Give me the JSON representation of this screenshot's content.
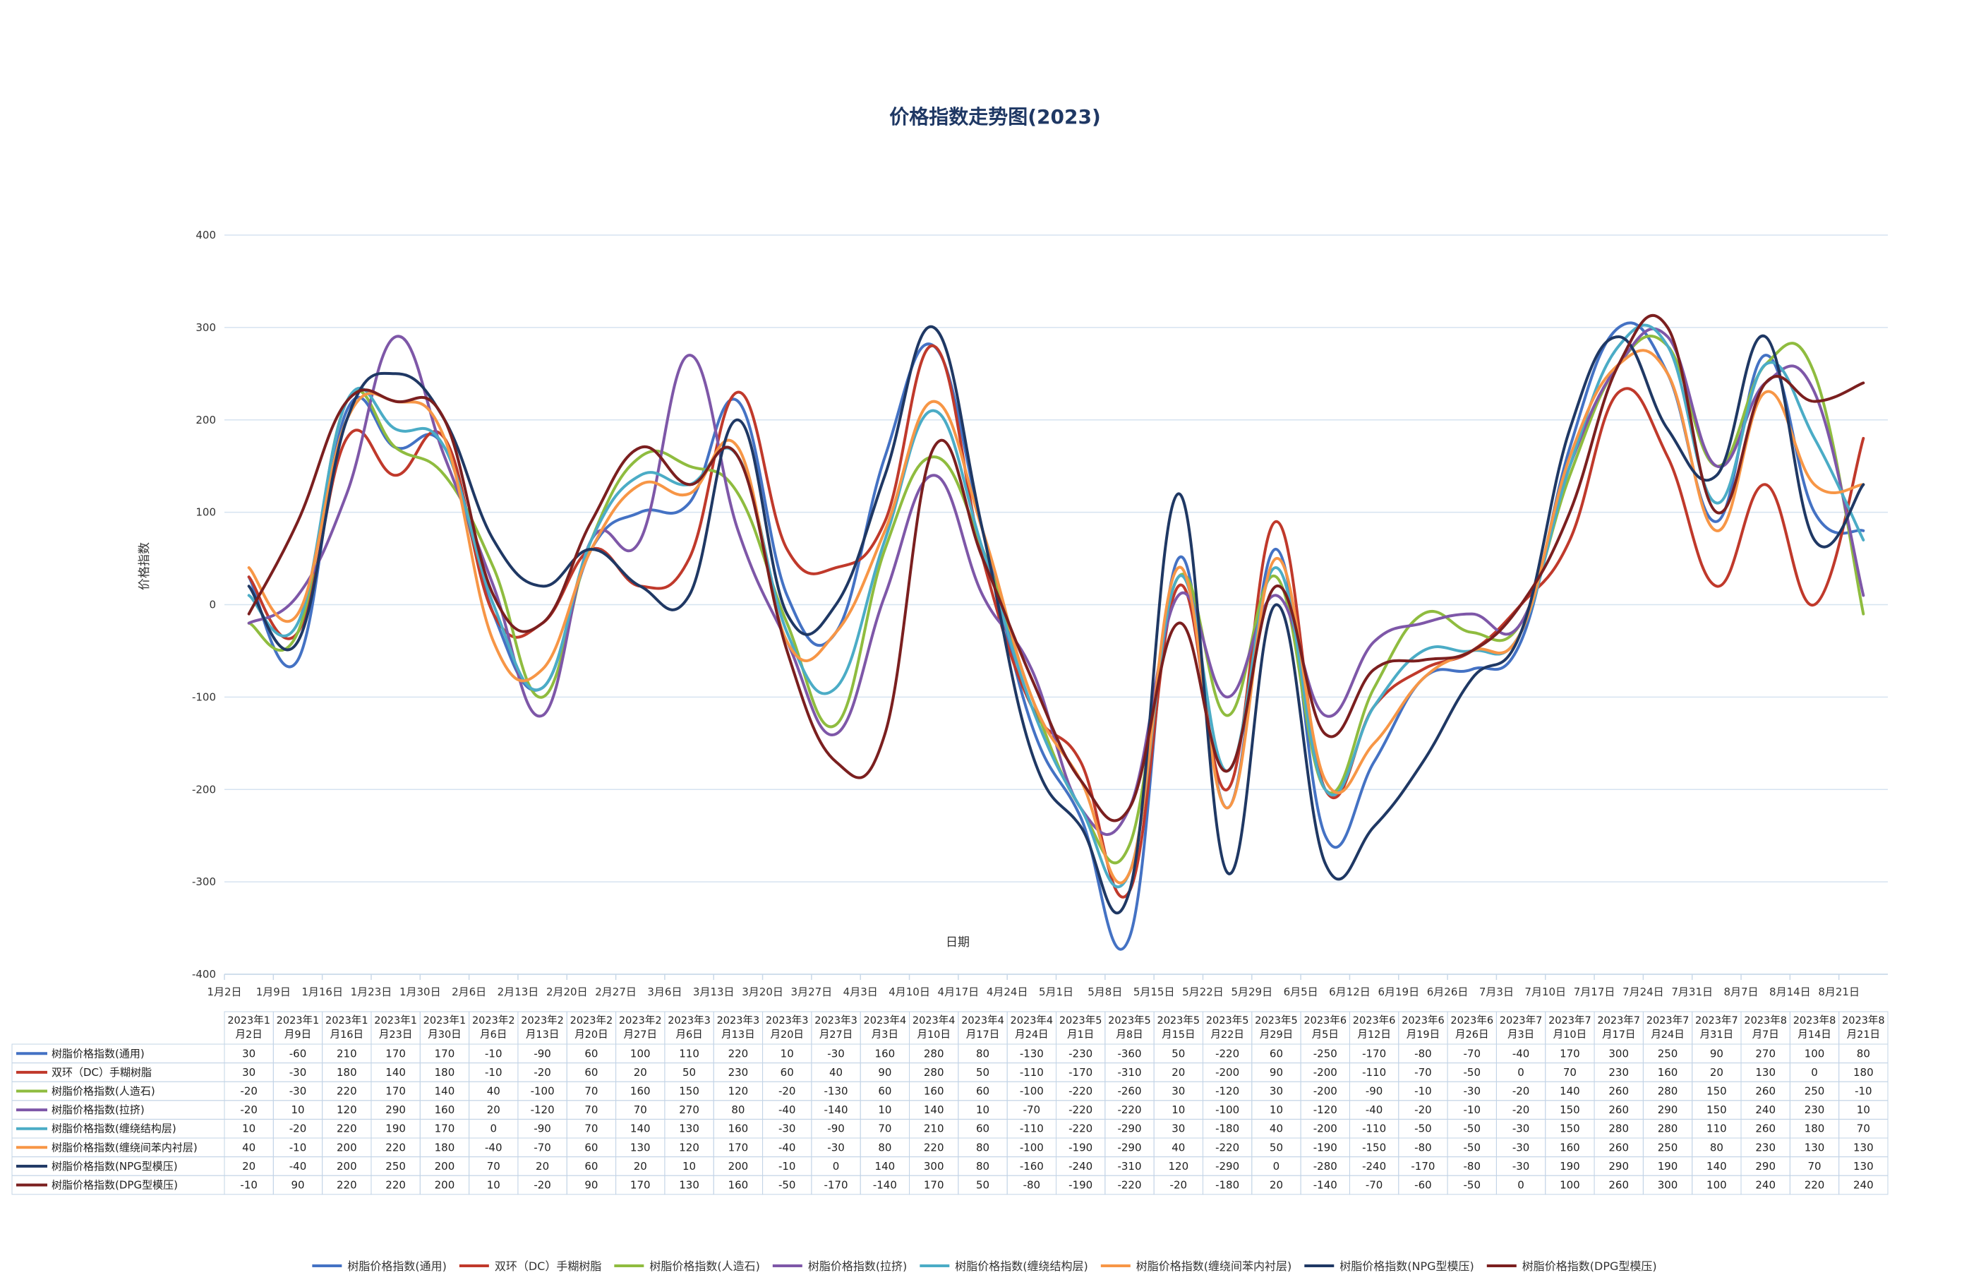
{
  "chart_data": {
    "type": "line",
    "title": "价格指数走势图(2023)",
    "xlabel": "日期",
    "ylabel": "价格指数",
    "ylim": [
      -400,
      400
    ],
    "yticks": [
      -400,
      -300,
      -200,
      -100,
      0,
      100,
      200,
      300,
      400
    ],
    "grid": true,
    "legend_position": "bottom",
    "categories": [
      "1月2日",
      "1月9日",
      "1月16日",
      "1月23日",
      "1月30日",
      "2月6日",
      "2月13日",
      "2月20日",
      "2月27日",
      "3月6日",
      "3月13日",
      "3月20日",
      "3月27日",
      "4月3日",
      "4月10日",
      "4月17日",
      "4月24日",
      "5月1日",
      "5月8日",
      "5月15日",
      "5月22日",
      "5月29日",
      "6月5日",
      "6月12日",
      "6月19日",
      "6月26日",
      "7月3日",
      "7月10日",
      "7月17日",
      "7月24日",
      "7月31日",
      "8月7日",
      "8月14日",
      "8月21日"
    ],
    "table_headers": [
      [
        "2023年1",
        "月2日"
      ],
      [
        "2023年1",
        "月9日"
      ],
      [
        "2023年1",
        "月16日"
      ],
      [
        "2023年1",
        "月23日"
      ],
      [
        "2023年1",
        "月30日"
      ],
      [
        "2023年2",
        "月6日"
      ],
      [
        "2023年2",
        "月13日"
      ],
      [
        "2023年2",
        "月20日"
      ],
      [
        "2023年2",
        "月27日"
      ],
      [
        "2023年3",
        "月6日"
      ],
      [
        "2023年3",
        "月13日"
      ],
      [
        "2023年3",
        "月20日"
      ],
      [
        "2023年3",
        "月27日"
      ],
      [
        "2023年4",
        "月3日"
      ],
      [
        "2023年4",
        "月10日"
      ],
      [
        "2023年4",
        "月17日"
      ],
      [
        "2023年4",
        "月24日"
      ],
      [
        "2023年5",
        "月1日"
      ],
      [
        "2023年5",
        "月8日"
      ],
      [
        "2023年5",
        "月15日"
      ],
      [
        "2023年5",
        "月22日"
      ],
      [
        "2023年5",
        "月29日"
      ],
      [
        "2023年6",
        "月5日"
      ],
      [
        "2023年6",
        "月12日"
      ],
      [
        "2023年6",
        "月19日"
      ],
      [
        "2023年6",
        "月26日"
      ],
      [
        "2023年7",
        "月3日"
      ],
      [
        "2023年7",
        "月10日"
      ],
      [
        "2023年7",
        "月17日"
      ],
      [
        "2023年7",
        "月24日"
      ],
      [
        "2023年7",
        "月31日"
      ],
      [
        "2023年8",
        "月7日"
      ],
      [
        "2023年8",
        "月14日"
      ],
      [
        "2023年8",
        "月21日"
      ]
    ],
    "series": [
      {
        "name": "树脂价格指数(通用)",
        "color": "#4472c4",
        "values": [
          30,
          -60,
          210,
          170,
          170,
          -10,
          -90,
          60,
          100,
          110,
          220,
          10,
          -30,
          160,
          280,
          80,
          -130,
          -230,
          -360,
          50,
          -220,
          60,
          -250,
          -170,
          -80,
          -70,
          -40,
          170,
          300,
          250,
          90,
          270,
          100,
          80
        ]
      },
      {
        "name": "双环（DC）手糊树脂",
        "color": "#c0392b",
        "values": [
          30,
          -30,
          180,
          140,
          180,
          -10,
          -20,
          60,
          20,
          50,
          230,
          60,
          40,
          90,
          280,
          50,
          -110,
          -170,
          -310,
          20,
          -200,
          90,
          -200,
          -110,
          -70,
          -50,
          0,
          70,
          230,
          160,
          20,
          130,
          0,
          180
        ]
      },
      {
        "name": "树脂价格指数(人造石)",
        "color": "#8fbc3f",
        "values": [
          -20,
          -30,
          220,
          170,
          140,
          40,
          -100,
          70,
          160,
          150,
          120,
          -20,
          -130,
          60,
          160,
          60,
          -100,
          -220,
          -260,
          30,
          -120,
          30,
          -200,
          -90,
          -10,
          -30,
          -20,
          140,
          260,
          280,
          150,
          260,
          250,
          -10
        ]
      },
      {
        "name": "树脂价格指数(拉挤)",
        "color": "#7e57a8",
        "values": [
          -20,
          10,
          120,
          290,
          160,
          20,
          -120,
          70,
          70,
          270,
          80,
          -40,
          -140,
          10,
          140,
          10,
          -70,
          -220,
          -220,
          10,
          -100,
          10,
          -120,
          -40,
          -20,
          -10,
          -20,
          150,
          260,
          290,
          150,
          240,
          230,
          10
        ]
      },
      {
        "name": "树脂价格指数(缠绕结构层)",
        "color": "#4bacc6",
        "values": [
          10,
          -20,
          220,
          190,
          170,
          0,
          -90,
          70,
          140,
          130,
          160,
          -30,
          -90,
          70,
          210,
          60,
          -110,
          -220,
          -290,
          30,
          -180,
          40,
          -200,
          -110,
          -50,
          -50,
          -30,
          150,
          280,
          280,
          110,
          260,
          180,
          70
        ]
      },
      {
        "name": "树脂价格指数(缠绕间苯内衬层)",
        "color": "#f79646",
        "values": [
          40,
          -10,
          200,
          220,
          180,
          -40,
          -70,
          60,
          130,
          120,
          170,
          -40,
          -30,
          80,
          220,
          80,
          -100,
          -190,
          -290,
          40,
          -220,
          50,
          -190,
          -150,
          -80,
          -50,
          -30,
          160,
          260,
          250,
          80,
          230,
          130,
          130
        ]
      },
      {
        "name": "树脂价格指数(NPG型模压)",
        "color": "#1f3864",
        "values": [
          20,
          -40,
          200,
          250,
          200,
          70,
          20,
          60,
          20,
          10,
          200,
          -10,
          0,
          140,
          300,
          80,
          -160,
          -240,
          -310,
          120,
          -290,
          0,
          -280,
          -240,
          -170,
          -80,
          -30,
          190,
          290,
          190,
          140,
          290,
          70,
          130
        ]
      },
      {
        "name": "树脂价格指数(DPG型模压)",
        "color": "#7b1f1f",
        "values": [
          -10,
          90,
          220,
          220,
          200,
          10,
          -20,
          90,
          170,
          130,
          160,
          -50,
          -170,
          -140,
          170,
          50,
          -80,
          -190,
          -220,
          -20,
          -180,
          20,
          -140,
          -70,
          -60,
          -50,
          0,
          100,
          260,
          300,
          100,
          240,
          220,
          240
        ]
      }
    ]
  }
}
